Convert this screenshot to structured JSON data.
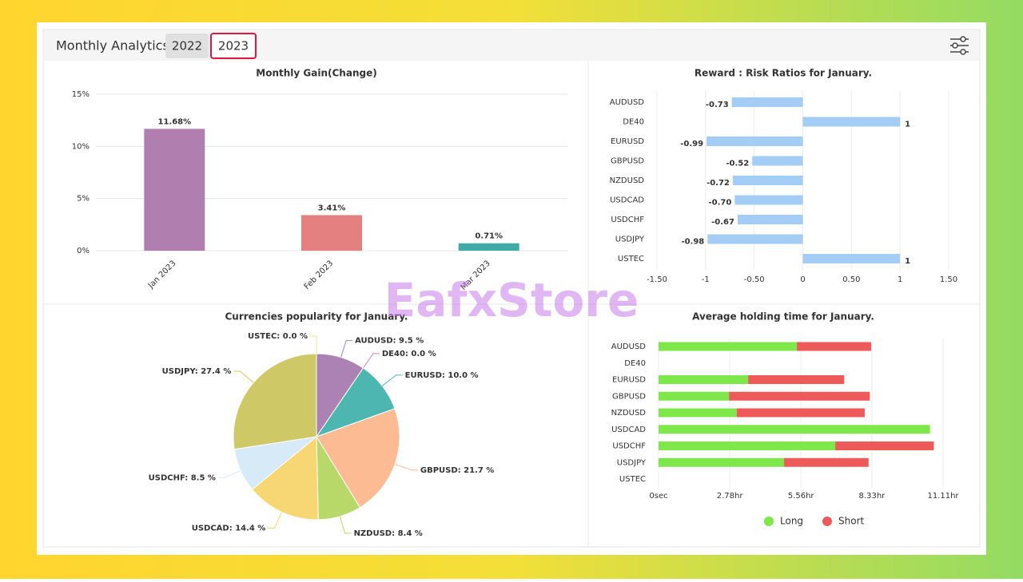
{
  "header": {
    "title": "Monthly Analytics",
    "tabs": [
      "2022",
      "2023"
    ],
    "selected_tab": 1
  },
  "watermark": "EafxStore",
  "chart_data": [
    {
      "type": "bar",
      "title": "Monthly Gain(Change)",
      "categories": [
        "Jan 2023",
        "Feb 2023",
        "Mar 2023"
      ],
      "values": [
        11.68,
        3.41,
        0.71
      ],
      "value_labels": [
        "11.68%",
        "3.41%",
        "0.71%"
      ],
      "colors": [
        "#b07fb0",
        "#e58080",
        "#3faaa6"
      ],
      "ylim": [
        0,
        15
      ],
      "yticks": [
        {
          "value": 0,
          "label": "0%"
        },
        {
          "value": 5,
          "label": "5%"
        },
        {
          "value": 10,
          "label": "10%"
        },
        {
          "value": 15,
          "label": "15%"
        }
      ],
      "grid": true
    },
    {
      "type": "hbar",
      "title": "Reward : Risk Ratios for January.",
      "categories": [
        "AUDUSD",
        "DE40",
        "EURUSD",
        "GBPUSD",
        "NZDUSD",
        "USDCAD",
        "USDCHF",
        "USDJPY",
        "USTEC"
      ],
      "values": [
        -0.73,
        1,
        -0.99,
        -0.52,
        -0.72,
        -0.7,
        -0.67,
        -0.98,
        1
      ],
      "value_labels": [
        "-0.73",
        "1",
        "-0.99",
        "-0.52",
        "-0.72",
        "-0.70",
        "-0.67",
        "-0.98",
        "1"
      ],
      "color": "#a3cdf5",
      "xlim": [
        -1.5,
        1.5
      ],
      "xticks": [
        {
          "value": -1.5,
          "label": "-1.50"
        },
        -1,
        {
          "value": -0.5,
          "label": "-0.50"
        },
        0,
        {
          "value": 0.5,
          "label": "0.50"
        },
        1,
        {
          "value": 1.5,
          "label": "1.50"
        }
      ],
      "grid": true
    },
    {
      "type": "pie",
      "title": "Currencies popularity for January.",
      "values": [
        9.5,
        0,
        10,
        21.7,
        8.4,
        14.4,
        8.5,
        27.4,
        0
      ],
      "value_labels": [
        "AUDUSD: 9.5 %",
        "DE40: 0.0 %",
        "EURUSD: 10.0 %",
        "GBPUSD: 21.7 %",
        "NZDUSD: 8.4 %",
        "USDCAD: 14.4 %",
        "USDCHF: 8.5 %",
        "USDJPY: 27.4 %",
        "USTEC: 0.0 %"
      ],
      "colors": [
        "#ab82b3",
        "#e07fb8",
        "#4db6b0",
        "#fdbb94",
        "#b8d86a",
        "#f7d774",
        "#d6eaf8",
        "#cfc866",
        "#e8e0a0"
      ]
    },
    {
      "type": "stacked_hbar",
      "title": "Average holding time for January.",
      "categories": [
        "AUDUSD",
        "DE40",
        "EURUSD",
        "GBPUSD",
        "NZDUSD",
        "USDCAD",
        "USDCHF",
        "USDJPY",
        "USTEC"
      ],
      "series": [
        {
          "name": "Long",
          "color": "#7ee84a",
          "values": [
            5.4,
            0,
            3.5,
            2.75,
            3.05,
            10.6,
            6.9,
            4.9,
            0
          ]
        },
        {
          "name": "Short",
          "color": "#ee5a5a",
          "values": [
            2.9,
            0,
            3.75,
            5.5,
            5.0,
            0,
            3.85,
            3.3,
            0
          ]
        }
      ],
      "xlim": [
        0,
        11.11
      ],
      "xticks": [
        {
          "value": 0,
          "label": "0sec"
        },
        {
          "value": 2.78,
          "label": "2.78hr"
        },
        {
          "value": 5.56,
          "label": "5.56hr"
        },
        {
          "value": 8.33,
          "label": "8.33hr"
        },
        {
          "value": 11.11,
          "label": "11.11hr"
        }
      ],
      "grid": true,
      "legend": "bottom"
    }
  ]
}
